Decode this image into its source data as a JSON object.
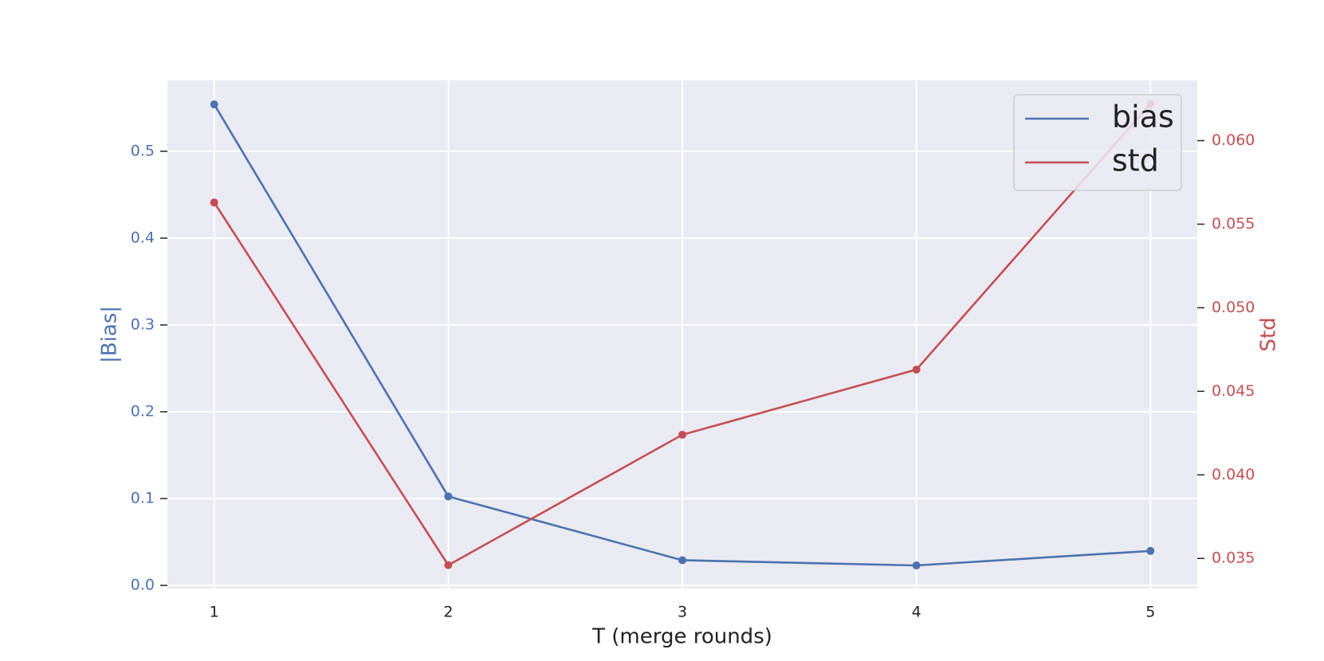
{
  "chart_data": {
    "type": "line",
    "x": [
      1,
      2,
      3,
      4,
      5
    ],
    "xlabel": "T (merge rounds)",
    "ylabel": "|Bias|",
    "y2label": "Std",
    "xlim": [
      0.8,
      5.2
    ],
    "xticks": [
      1,
      2,
      3,
      4,
      5
    ],
    "ylim": [
      -0.0036,
      0.5816
    ],
    "yticks": [
      {
        "value": 0,
        "label": "0.0"
      },
      0.1,
      0.2,
      0.3,
      0.4,
      0.5
    ],
    "y2lim": [
      0.0332,
      0.0636
    ],
    "y2ticks": [
      0.035,
      {
        "value": 0.04,
        "label": "0.040"
      },
      0.045,
      {
        "value": 0.05,
        "label": "0.050"
      },
      0.055,
      {
        "value": 0.06,
        "label": "0.060"
      }
    ],
    "ycolor": "#4c72b0",
    "y2color": "#c44e52",
    "grid": true,
    "legend": "upper right",
    "series": [
      {
        "name": "bias",
        "color": "#4c72b0",
        "values": [
          0.554,
          0.1025,
          0.029,
          0.023,
          0.0397
        ]
      },
      {
        "name": "std",
        "color": "#c44e52",
        "axis": "y2",
        "values": [
          0.0563,
          0.0346,
          0.0424,
          0.0463,
          0.0622
        ]
      }
    ]
  }
}
